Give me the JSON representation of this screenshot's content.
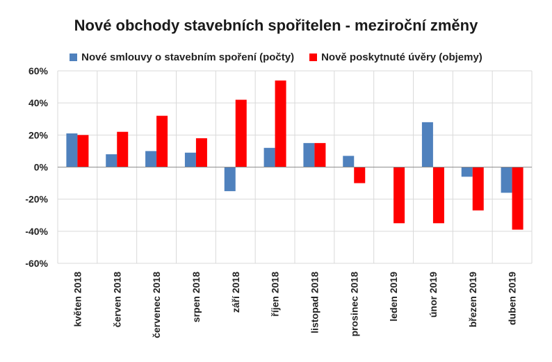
{
  "chart_data": {
    "type": "bar",
    "title": "Nové obchody stavebních spořitelen - meziroční změny",
    "categories": [
      "květen 2018",
      "červen 2018",
      "červenec 2018",
      "srpen 2018",
      "září 2018",
      "říjen 2018",
      "listopad 2018",
      "prosinec 2018",
      "leden 2019",
      "únor 2019",
      "březen 2019",
      "duben 2019"
    ],
    "series": [
      {
        "name": "Nové smlouvy o stavebním spoření (počty)",
        "color": "#4f81bd",
        "values": [
          21,
          8,
          10,
          9,
          -15,
          12,
          15,
          7,
          0,
          28,
          -6,
          -16
        ]
      },
      {
        "name": "Nově poskytnuté úvěry (objemy)",
        "color": "#ff0000",
        "values": [
          20,
          22,
          32,
          18,
          42,
          54,
          15,
          -10,
          -35,
          -35,
          -27,
          -39
        ]
      }
    ],
    "ylim": [
      -60,
      60
    ],
    "yticks": [
      "60%",
      "40%",
      "20%",
      "0%",
      "-20%",
      "-40%",
      "-60%"
    ],
    "grid": true,
    "legend_position": "top"
  }
}
